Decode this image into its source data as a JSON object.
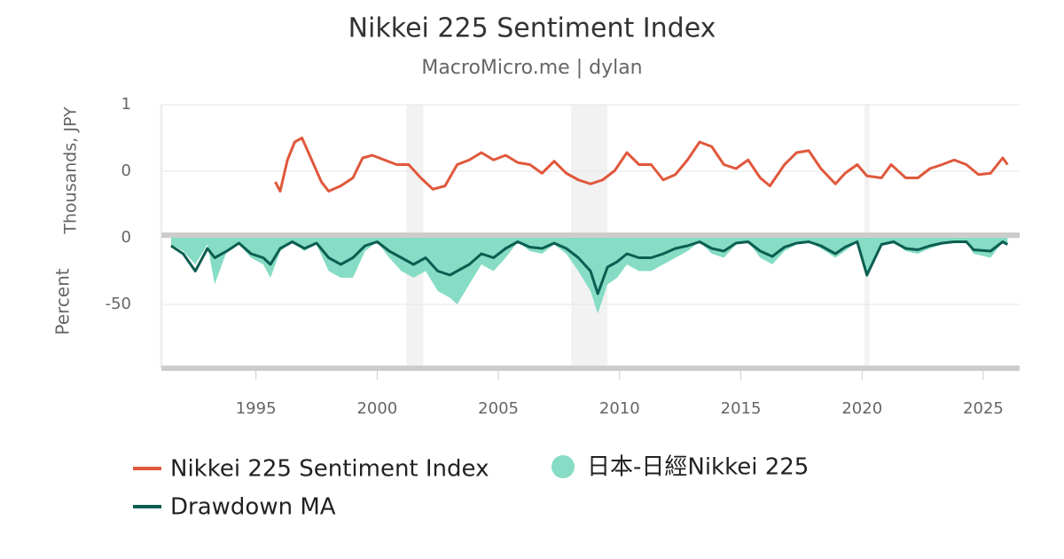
{
  "chart_data": {
    "type": "line",
    "title": "Nikkei 225 Sentiment Index",
    "subtitle": "MacroMicro.me | dylan",
    "ylabel": "Thousands, JPY",
    "y2label": "Percent",
    "xlim": [
      1991.1,
      2026.5
    ],
    "xticks": [
      1995,
      2000,
      2005,
      2010,
      2015,
      2020,
      2025
    ],
    "ylim": [
      -0.96,
      1
    ],
    "yticks": [
      0,
      1
    ],
    "y2lim": [
      -98,
      2
    ],
    "y2ticks": [
      -50,
      0
    ],
    "grid": true,
    "legend": "bottom-left",
    "shaded_periods": [
      [
        2001.2,
        2001.9
      ],
      [
        2008.0,
        2009.5
      ],
      [
        2020.1,
        2020.3
      ]
    ],
    "series": [
      {
        "name": "Nikkei 225 Sentiment Index",
        "type": "line",
        "axis": "y",
        "color": "#e0583c",
        "x": [
          1995.8,
          1996.0,
          1996.3,
          1996.6,
          1996.9,
          1997.3,
          1997.7,
          1998.0,
          1998.5,
          1999.0,
          1999.4,
          1999.8,
          2000.3,
          2000.8,
          2001.3,
          2001.8,
          2002.3,
          2002.8,
          2003.3,
          2003.8,
          2004.3,
          2004.8,
          2005.3,
          2005.8,
          2006.3,
          2006.8,
          2007.3,
          2007.8,
          2008.3,
          2008.8,
          2009.3,
          2009.8,
          2010.3,
          2010.8,
          2011.3,
          2011.8,
          2012.3,
          2012.8,
          2013.3,
          2013.8,
          2014.3,
          2014.8,
          2015.3,
          2015.8,
          2016.2,
          2016.8,
          2017.3,
          2017.8,
          2018.3,
          2018.9,
          2019.3,
          2019.8,
          2020.2,
          2020.8,
          2021.2,
          2021.8,
          2022.3,
          2022.8,
          2023.3,
          2023.8,
          2024.3,
          2024.8,
          2025.3,
          2025.8,
          2026.0
        ],
        "values": [
          -0.16,
          -0.3,
          0.17,
          0.44,
          0.5,
          0.17,
          -0.16,
          -0.3,
          -0.22,
          -0.1,
          0.2,
          0.24,
          0.17,
          0.1,
          0.1,
          -0.1,
          -0.27,
          -0.22,
          0.1,
          0.17,
          0.28,
          0.17,
          0.24,
          0.13,
          0.1,
          -0.03,
          0.15,
          -0.03,
          -0.13,
          -0.19,
          -0.13,
          0.01,
          0.28,
          0.1,
          0.1,
          -0.13,
          -0.05,
          0.17,
          0.44,
          0.37,
          0.1,
          0.04,
          0.17,
          -0.1,
          -0.22,
          0.1,
          0.28,
          0.31,
          0.04,
          -0.19,
          -0.03,
          0.1,
          -0.07,
          -0.1,
          0.1,
          -0.1,
          -0.1,
          0.04,
          0.1,
          0.17,
          0.1,
          -0.05,
          -0.03,
          0.2,
          0.1
        ]
      },
      {
        "name": "日本-日經Nikkei 225",
        "type": "area",
        "axis": "y2",
        "color": "#86dcc4",
        "x": [
          1991.5,
          1992.0,
          1992.5,
          1993.0,
          1993.3,
          1993.8,
          1994.3,
          1994.8,
          1995.3,
          1995.6,
          1996.0,
          1996.5,
          1997.0,
          1997.5,
          1998.0,
          1998.5,
          1999.0,
          1999.5,
          2000.0,
          2000.5,
          2001.0,
          2001.5,
          2002.0,
          2002.5,
          2003.0,
          2003.3,
          2003.8,
          2004.3,
          2004.8,
          2005.3,
          2005.8,
          2006.3,
          2006.8,
          2007.3,
          2007.8,
          2008.3,
          2008.8,
          2009.1,
          2009.5,
          2009.9,
          2010.3,
          2010.8,
          2011.3,
          2011.8,
          2012.3,
          2012.8,
          2013.3,
          2013.8,
          2014.3,
          2014.8,
          2015.3,
          2015.8,
          2016.3,
          2016.8,
          2017.3,
          2017.8,
          2018.3,
          2018.9,
          2019.3,
          2019.8,
          2020.2,
          2020.8,
          2021.3,
          2021.8,
          2022.3,
          2022.8,
          2023.3,
          2023.8,
          2024.3,
          2024.6,
          2025.3,
          2025.8,
          2026.0
        ],
        "values": [
          -5,
          -10,
          -20,
          -5,
          -35,
          -10,
          -5,
          -15,
          -20,
          -30,
          -10,
          -3,
          -10,
          -5,
          -25,
          -30,
          -30,
          -10,
          -3,
          -15,
          -25,
          -30,
          -25,
          -40,
          -45,
          -50,
          -35,
          -20,
          -25,
          -15,
          -3,
          -10,
          -12,
          -5,
          -12,
          -25,
          -40,
          -57,
          -35,
          -30,
          -20,
          -25,
          -25,
          -20,
          -15,
          -10,
          -3,
          -12,
          -15,
          -5,
          -3,
          -15,
          -20,
          -10,
          -5,
          -3,
          -8,
          -15,
          -10,
          -3,
          -30,
          -5,
          -3,
          -10,
          -12,
          -8,
          -5,
          -3,
          -3,
          -12,
          -15,
          -3,
          -5
        ]
      },
      {
        "name": "Drawdown MA",
        "type": "line",
        "axis": "y2",
        "color": "#0b5e51",
        "x": [
          1991.5,
          1992.0,
          1992.5,
          1993.0,
          1993.3,
          1993.8,
          1994.3,
          1994.8,
          1995.3,
          1995.6,
          1996.0,
          1996.5,
          1997.0,
          1997.5,
          1998.0,
          1998.5,
          1999.0,
          1999.5,
          2000.0,
          2000.5,
          2001.0,
          2001.5,
          2002.0,
          2002.5,
          2003.0,
          2003.3,
          2003.8,
          2004.3,
          2004.8,
          2005.3,
          2005.8,
          2006.3,
          2006.8,
          2007.3,
          2007.8,
          2008.3,
          2008.8,
          2009.1,
          2009.5,
          2009.9,
          2010.3,
          2010.8,
          2011.3,
          2011.8,
          2012.3,
          2012.8,
          2013.3,
          2013.8,
          2014.3,
          2014.8,
          2015.3,
          2015.8,
          2016.3,
          2016.8,
          2017.3,
          2017.8,
          2018.3,
          2018.9,
          2019.3,
          2019.8,
          2020.2,
          2020.8,
          2021.3,
          2021.8,
          2022.3,
          2022.8,
          2023.3,
          2023.8,
          2024.3,
          2024.6,
          2025.3,
          2025.8,
          2026.0
        ],
        "values": [
          -6,
          -12,
          -25,
          -8,
          -15,
          -10,
          -4,
          -12,
          -15,
          -20,
          -8,
          -3,
          -8,
          -4,
          -15,
          -20,
          -15,
          -6,
          -3,
          -10,
          -15,
          -20,
          -15,
          -25,
          -28,
          -25,
          -20,
          -12,
          -15,
          -8,
          -3,
          -7,
          -8,
          -4,
          -8,
          -15,
          -25,
          -42,
          -22,
          -18,
          -12,
          -15,
          -15,
          -12,
          -8,
          -6,
          -3,
          -8,
          -10,
          -4,
          -3,
          -10,
          -14,
          -7,
          -4,
          -3,
          -6,
          -12,
          -7,
          -3,
          -28,
          -5,
          -3,
          -8,
          -9,
          -6,
          -4,
          -3,
          -3,
          -9,
          -10,
          -3,
          -5
        ]
      }
    ]
  }
}
